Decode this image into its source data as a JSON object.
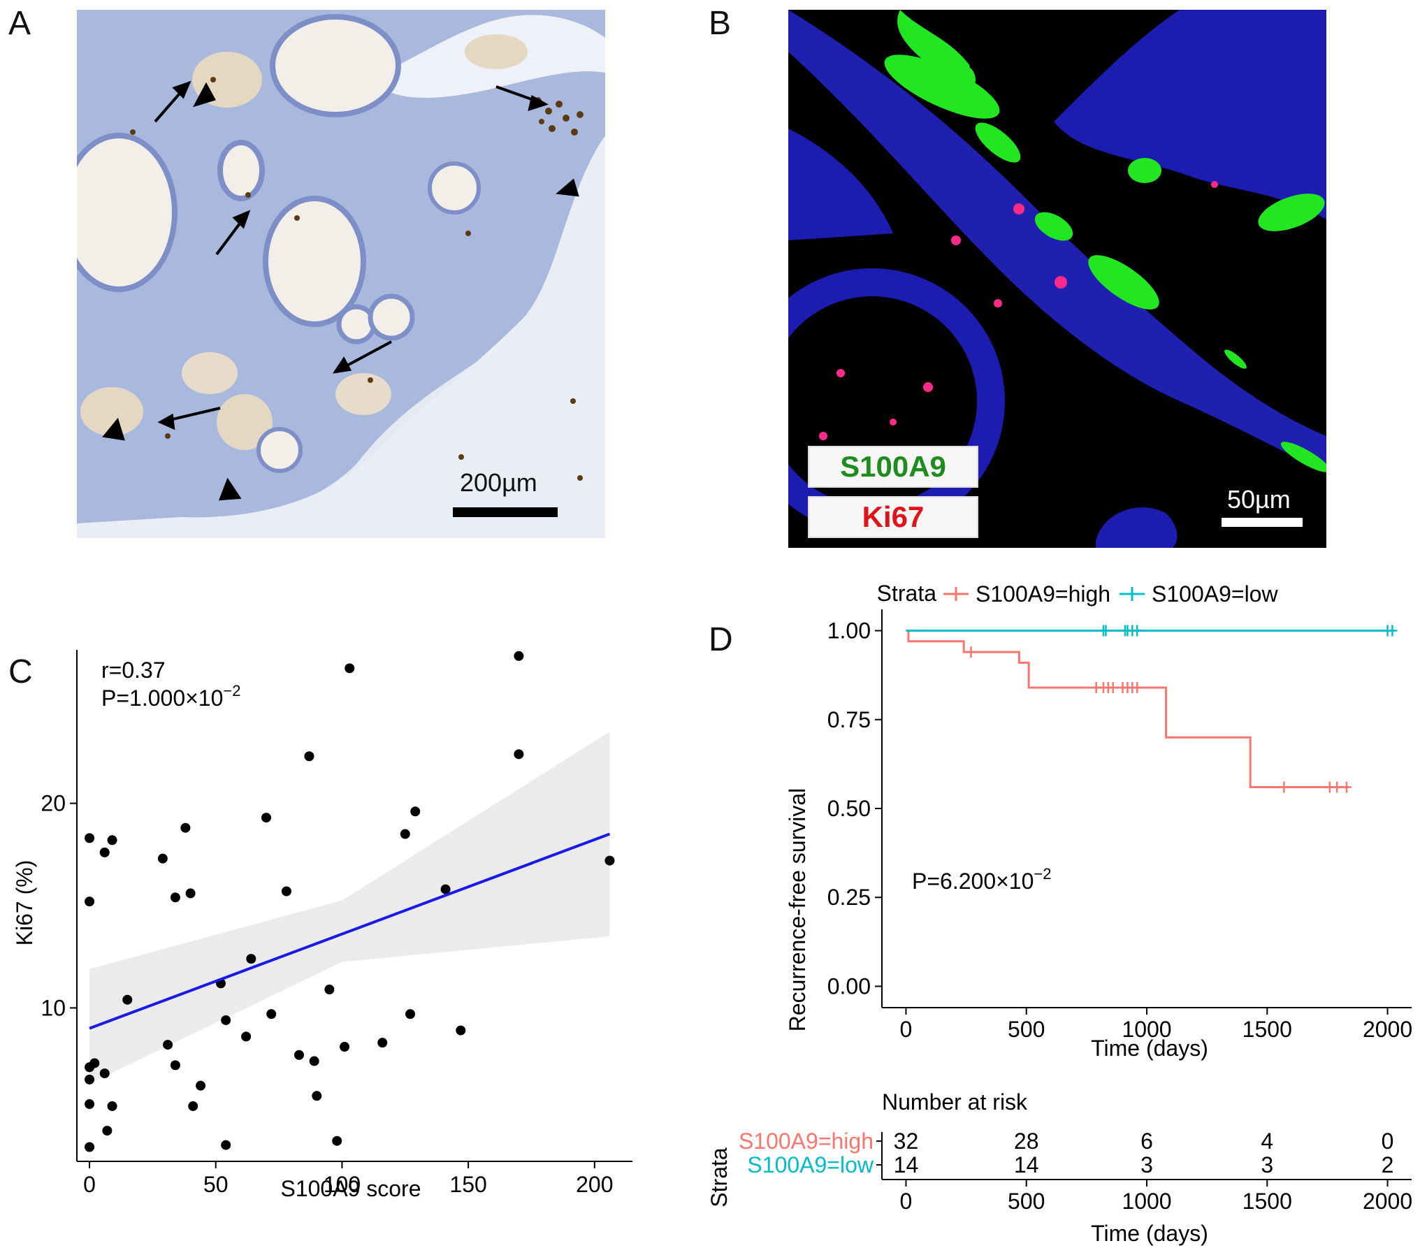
{
  "panels": {
    "a": {
      "letter": "A",
      "scale_label": "200µm"
    },
    "b": {
      "letter": "B",
      "scale_label": "50µm",
      "legend": [
        {
          "label": "S100A9",
          "color": "#1e8c1e"
        },
        {
          "label": "Ki67",
          "color": "#e0121a"
        }
      ]
    },
    "c": {
      "letter": "C"
    },
    "d": {
      "letter": "D"
    }
  },
  "chart_data": [
    {
      "type": "scatter",
      "panel": "C",
      "xlabel": "S100A9 score",
      "ylabel": "Ki67 (%)",
      "xlim": [
        -5,
        215
      ],
      "ylim": [
        2.5,
        27.5
      ],
      "xticks": [
        0,
        50,
        100,
        150,
        200
      ],
      "yticks": [
        10,
        20
      ],
      "annotation": {
        "r": "r=0.37",
        "p_prefix": "P=1.000×10",
        "p_exp": "−2"
      },
      "points": [
        [
          0,
          18.3
        ],
        [
          0,
          15.2
        ],
        [
          0,
          7.1
        ],
        [
          0,
          6.5
        ],
        [
          0,
          5.3
        ],
        [
          0,
          3.2
        ],
        [
          2,
          7.3
        ],
        [
          6,
          17.6
        ],
        [
          6,
          6.8
        ],
        [
          7,
          4
        ],
        [
          9,
          18.2
        ],
        [
          9,
          5.2
        ],
        [
          15,
          10.4
        ],
        [
          29,
          17.3
        ],
        [
          31,
          8.2
        ],
        [
          34,
          15.4
        ],
        [
          34,
          7.2
        ],
        [
          38,
          18.8
        ],
        [
          40,
          15.6
        ],
        [
          41,
          5.2
        ],
        [
          44,
          6.2
        ],
        [
          52,
          11.2
        ],
        [
          54,
          9.4
        ],
        [
          54,
          3.3
        ],
        [
          62,
          8.6
        ],
        [
          64,
          12.4
        ],
        [
          70,
          19.3
        ],
        [
          72,
          9.7
        ],
        [
          78,
          15.7
        ],
        [
          83,
          7.7
        ],
        [
          87,
          22.3
        ],
        [
          89,
          7.4
        ],
        [
          90,
          5.7
        ],
        [
          95,
          10.9
        ],
        [
          98,
          3.5
        ],
        [
          101,
          8.1
        ],
        [
          103,
          26.6
        ],
        [
          116,
          8.3
        ],
        [
          125,
          18.5
        ],
        [
          127,
          9.7
        ],
        [
          129,
          19.6
        ],
        [
          141,
          15.8
        ],
        [
          147,
          8.9
        ],
        [
          170,
          27.2
        ],
        [
          170,
          22.4
        ],
        [
          206,
          17.2
        ]
      ],
      "fit": {
        "x": [
          0,
          206
        ],
        "y": [
          9.0,
          18.5
        ],
        "ci_lower": [
          6.3,
          13.5
        ],
        "ci_upper": [
          11.9,
          23.5
        ]
      },
      "colors": {
        "points": "#000000",
        "fit": "#1a1ae6",
        "ci": "#ebebeb"
      }
    },
    {
      "type": "line",
      "panel": "D",
      "subtype": "kaplan-meier",
      "xlabel": "Time (days)",
      "ylabel": "Recurrence-free survival",
      "xlim": [
        -100,
        2100
      ],
      "ylim": [
        -0.06,
        1.06
      ],
      "xticks": [
        0,
        500,
        1000,
        1500,
        2000
      ],
      "yticks": [
        "0.00",
        "0.25",
        "0.50",
        "0.75",
        "1.00"
      ],
      "legend_title": "Strata",
      "annotation": {
        "p_prefix": "P=6.200×10",
        "p_exp": "−2"
      },
      "series": [
        {
          "name": "S100A9=high",
          "color": "#f8766d",
          "steps": [
            [
              0,
              1.0
            ],
            [
              10,
              0.97
            ],
            [
              240,
              0.94
            ],
            [
              470,
              0.91
            ],
            [
              510,
              0.84
            ],
            [
              1080,
              0.7
            ],
            [
              1430,
              0.56
            ],
            [
              1840,
              0.56
            ]
          ],
          "censors": [
            [
              270,
              0.94
            ],
            [
              790,
              0.84
            ],
            [
              820,
              0.84
            ],
            [
              840,
              0.84
            ],
            [
              860,
              0.84
            ],
            [
              900,
              0.84
            ],
            [
              920,
              0.84
            ],
            [
              940,
              0.84
            ],
            [
              960,
              0.84
            ],
            [
              1570,
              0.56
            ],
            [
              1760,
              0.56
            ],
            [
              1790,
              0.56
            ],
            [
              1830,
              0.56
            ]
          ]
        },
        {
          "name": "S100A9=low",
          "color": "#00bfc4",
          "steps": [
            [
              0,
              1.0
            ],
            [
              2030,
              1.0
            ]
          ],
          "censors": [
            [
              820,
              1.0
            ],
            [
              830,
              1.0
            ],
            [
              910,
              1.0
            ],
            [
              920,
              1.0
            ],
            [
              940,
              1.0
            ],
            [
              960,
              1.0
            ],
            [
              2000,
              1.0
            ],
            [
              2020,
              1.0
            ]
          ]
        }
      ],
      "risk_table": {
        "title": "Number at risk",
        "ylabel": "Strata",
        "times": [
          0,
          500,
          1000,
          1500,
          2000
        ],
        "rows": [
          {
            "name": "S100A9=high",
            "values": [
              "32",
              "28",
              "6",
              "4",
              "0"
            ]
          },
          {
            "name": "S100A9=low",
            "values": [
              "14",
              "14",
              "3",
              "3",
              "2"
            ]
          }
        ],
        "xlabel": "Time (days)"
      }
    }
  ]
}
